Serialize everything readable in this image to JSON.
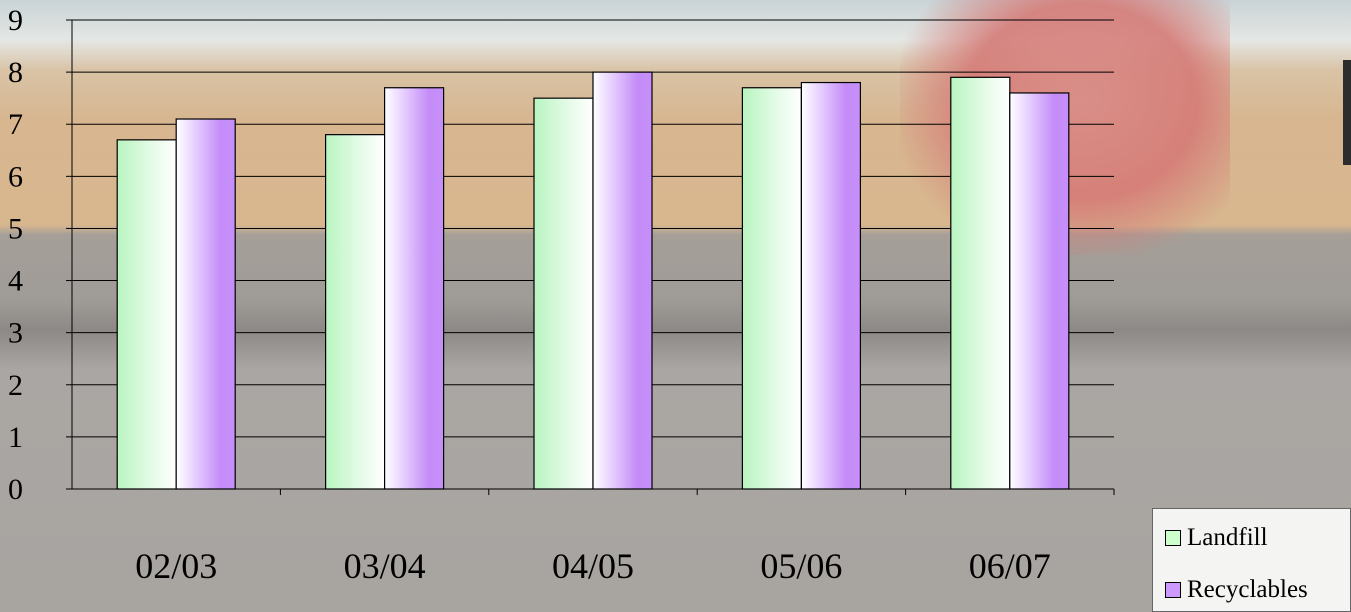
{
  "chart_data": {
    "type": "bar",
    "categories": [
      "02/03",
      "03/04",
      "04/05",
      "05/06",
      "06/07"
    ],
    "series": [
      {
        "name": "Landfill",
        "values": [
          6.7,
          6.8,
          7.5,
          7.7,
          7.9
        ],
        "color": "#ccffcc"
      },
      {
        "name": "Recyclables",
        "values": [
          7.1,
          7.7,
          8.0,
          7.8,
          7.6
        ],
        "color": "#cc99ff"
      }
    ],
    "ylim": [
      0,
      9
    ],
    "yticks": [
      "0",
      "1",
      "2",
      "3",
      "4",
      "5",
      "6",
      "7",
      "8",
      "9"
    ],
    "grid": true,
    "legend_position": "bottom-right",
    "title": "",
    "xlabel": "",
    "ylabel": ""
  }
}
